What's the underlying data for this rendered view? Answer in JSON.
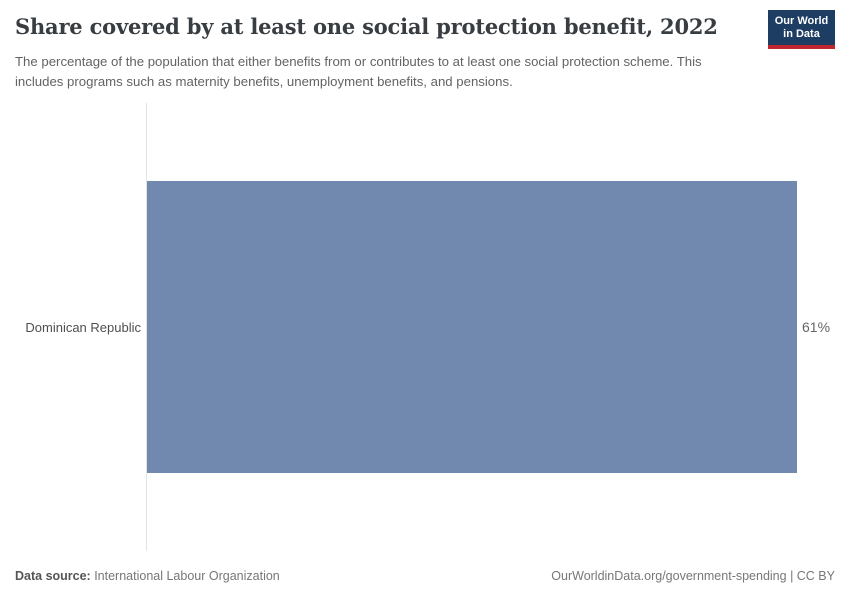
{
  "header": {
    "title": "Share covered by at least one social protection benefit, 2022",
    "subtitle": "The percentage of the population that either benefits from or contributes to at least one social protection scheme. This includes programs such as maternity benefits, unemployment benefits, and pensions.",
    "logo": {
      "line1": "Our World",
      "line2": "in Data"
    }
  },
  "chart_data": {
    "type": "bar",
    "orientation": "horizontal",
    "title": "Share covered by at least one social protection benefit, 2022",
    "categories": [
      "Dominican Republic"
    ],
    "values": [
      61
    ],
    "value_labels": [
      "61%"
    ],
    "unit": "%",
    "xlabel": "",
    "ylabel": "",
    "xlim": [
      0,
      61
    ],
    "grid": false,
    "legend": "none",
    "bar_color": "#7189ae"
  },
  "footer": {
    "data_source_label": "Data source:",
    "data_source_value": " International Labour Organization",
    "link_text": "OurWorldinData.org/government-spending | CC BY"
  },
  "colors": {
    "bar": "#7189ae",
    "title": "#383d42",
    "subtitle": "#636363",
    "logo_bg": "#1d3d63",
    "logo_accent": "#c0262d",
    "axis_line": "#e3e3e3"
  }
}
